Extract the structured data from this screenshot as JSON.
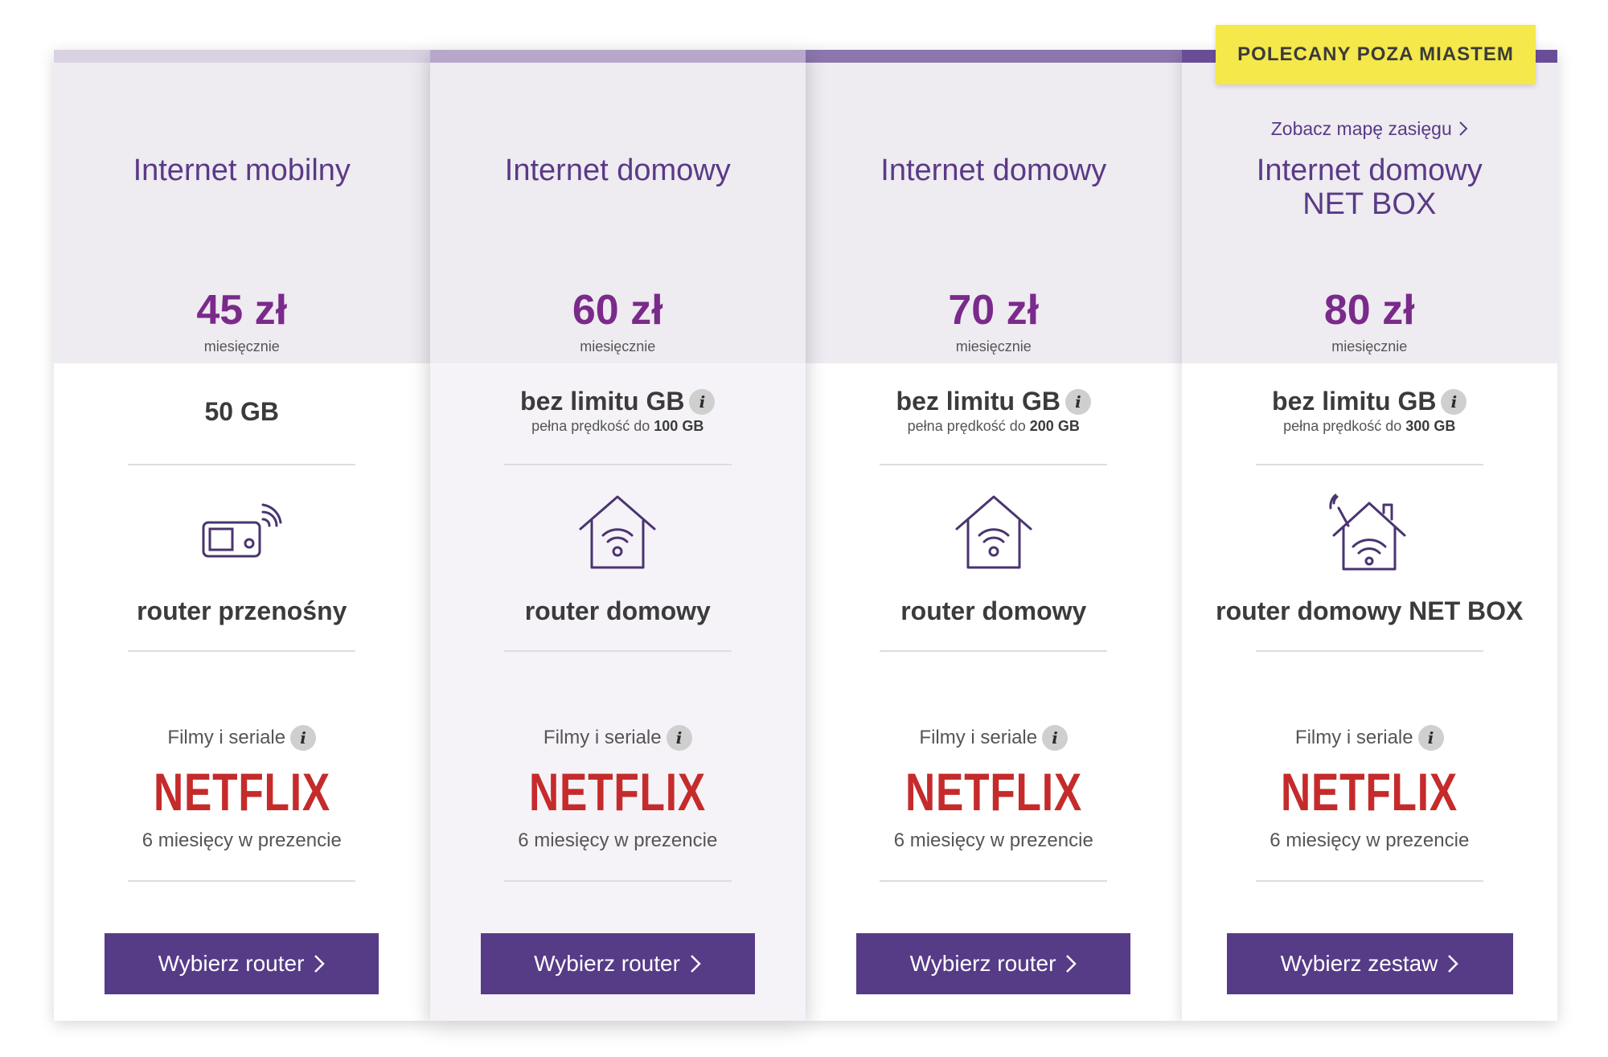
{
  "badge": "POLECANY POZA MIASTEM",
  "colors": {
    "brand": "#563b87",
    "price": "#7a2a8a",
    "header_bg": "#eeebf1",
    "netflix": "#c52b2b",
    "badge_bg": "#f4e84a"
  },
  "plans": [
    {
      "title_line1": "Internet mobilny",
      "title_line2": "",
      "price": "45 zł",
      "period": "miesięcznie",
      "data": "50 GB",
      "data_sub_prefix": "",
      "data_sub_value": "",
      "router_icon": "portable-router-icon",
      "router": "router przenośny",
      "films": "Filmy i seriale",
      "netflix": "NETFLIX",
      "promo": "6 miesięcy w prezencie",
      "cta": "Wybierz router",
      "info_icon": "i"
    },
    {
      "title_line1": "Internet domowy",
      "title_line2": "",
      "price": "60 zł",
      "period": "miesięcznie",
      "data": "bez limitu GB",
      "data_sub_prefix": "pełna prędkość do",
      "data_sub_value": "100 GB",
      "router_icon": "home-router-icon",
      "router": "router domowy",
      "films": "Filmy i seriale",
      "netflix": "NETFLIX",
      "promo": "6 miesięcy w prezencie",
      "cta": "Wybierz router",
      "info_icon": "i"
    },
    {
      "title_line1": "Internet domowy",
      "title_line2": "",
      "price": "70 zł",
      "period": "miesięcznie",
      "data": "bez limitu GB",
      "data_sub_prefix": "pełna prędkość do",
      "data_sub_value": "200 GB",
      "router_icon": "home-router-icon",
      "router": "router domowy",
      "films": "Filmy i seriale",
      "netflix": "NETFLIX",
      "promo": "6 miesięcy w prezencie",
      "cta": "Wybierz router",
      "info_icon": "i"
    },
    {
      "coverage_link": "Zobacz mapę zasięgu",
      "title_line1": "Internet domowy",
      "title_line2": "NET BOX",
      "price": "80 zł",
      "period": "miesięcznie",
      "data": "bez limitu GB",
      "data_sub_prefix": "pełna prędkość do",
      "data_sub_value": "300 GB",
      "router_icon": "netbox-house-antenna-icon",
      "router": "router domowy NET BOX",
      "films": "Filmy i seriale",
      "netflix": "NETFLIX",
      "promo": "6 miesięcy w prezencie",
      "cta": "Wybierz zestaw",
      "info_icon": "i"
    }
  ]
}
